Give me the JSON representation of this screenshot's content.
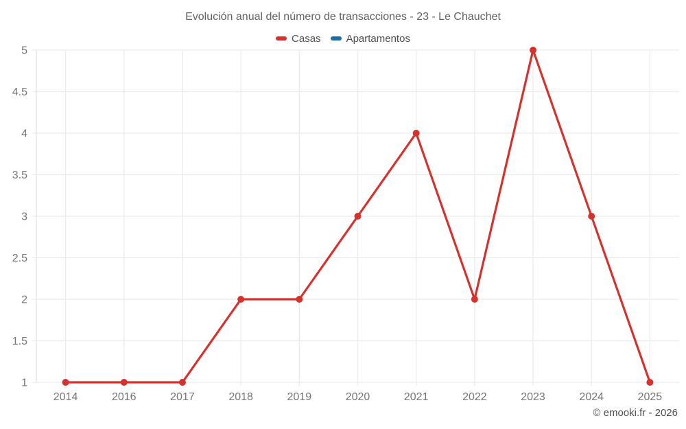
{
  "chart_data": {
    "type": "line",
    "title": "Evolución anual del número de transacciones - 23 - Le Chauchet",
    "categories": [
      "2014",
      "2016",
      "2017",
      "2018",
      "2019",
      "2020",
      "2021",
      "2022",
      "2023",
      "2024",
      "2025"
    ],
    "series": [
      {
        "name": "Casas",
        "color": "#d6312d",
        "values": [
          1,
          1,
          1,
          2,
          2,
          3,
          4,
          2,
          5,
          3,
          1
        ]
      },
      {
        "name": "Apartamentos",
        "color": "#1a6da5",
        "values": []
      }
    ],
    "ylim": [
      1,
      5
    ],
    "y_ticks": [
      "1",
      "1.5",
      "2",
      "2.5",
      "3",
      "3.5",
      "4",
      "4.5",
      "5"
    ],
    "xlabel": "",
    "ylabel": "",
    "grid": true,
    "legend_position": "top"
  },
  "footer": {
    "copyright": "© emooki.fr - 2026"
  },
  "colors": {
    "background": "#ffffff",
    "grid": "#ebebeb",
    "axis": "#e3e3e3",
    "tick_text": "#757575",
    "title_text": "#616161",
    "legend_text": "#4f4f4f",
    "footer_text": "#4f4f4f"
  }
}
